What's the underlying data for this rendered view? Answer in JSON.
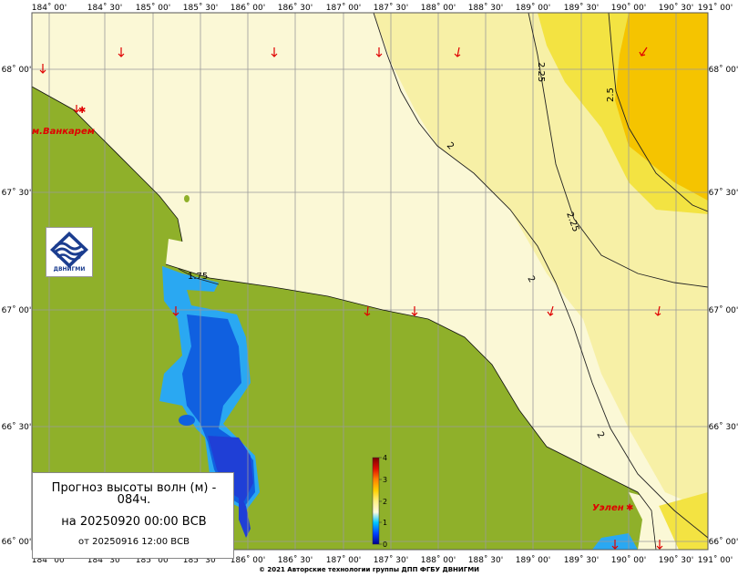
{
  "map": {
    "lon_ticks": [
      "184˚ 00'",
      "184˚ 30'",
      "185˚ 00'",
      "185˚ 30'",
      "186˚ 00'",
      "186˚ 30'",
      "187˚ 00'",
      "187˚ 30'",
      "188˚ 00'",
      "188˚ 30'",
      "189˚ 00'",
      "189˚ 30'",
      "190˚ 00'",
      "190˚ 30'",
      "191˚ 00'"
    ],
    "lat_ticks": [
      "68˚ 00'",
      "67˚ 30'",
      "67˚ 00'",
      "66˚ 30'",
      "66˚ 00'"
    ],
    "contour_labels": [
      "2.25",
      "2.5",
      "2",
      "2.25",
      "2",
      "2",
      "1.75"
    ],
    "places": [
      "м.Ванкарем",
      "Уэлен"
    ],
    "colors": {
      "land": "#8fb02a",
      "sea_low": "#fbf8d6",
      "sea_mid": "#f7f0a6",
      "sea_high": "#f3e342",
      "sea_peak": "#f5c400",
      "lagoon_light": "#2aa8f2",
      "lagoon_dark": "#1060e0",
      "lagoon_deep": "#1f3fd6",
      "arrow": "#e00000",
      "grid": "#9a9a9a"
    }
  },
  "colorbar": {
    "ticks": [
      "4",
      "3",
      "2",
      "1",
      "0"
    ],
    "range": [
      0,
      4
    ]
  },
  "logo": {
    "text": "ДВНИГМИ"
  },
  "info": {
    "title": "Прогноз высоты волн (м) - 084ч.",
    "forecast_date": "на 20250920 00:00 ВСВ",
    "init_date": "от 20250916 12:00 ВСВ"
  },
  "copyright": "© 2021 Авторские технологии группы ДПП ФГБУ ДВНИГМИ"
}
